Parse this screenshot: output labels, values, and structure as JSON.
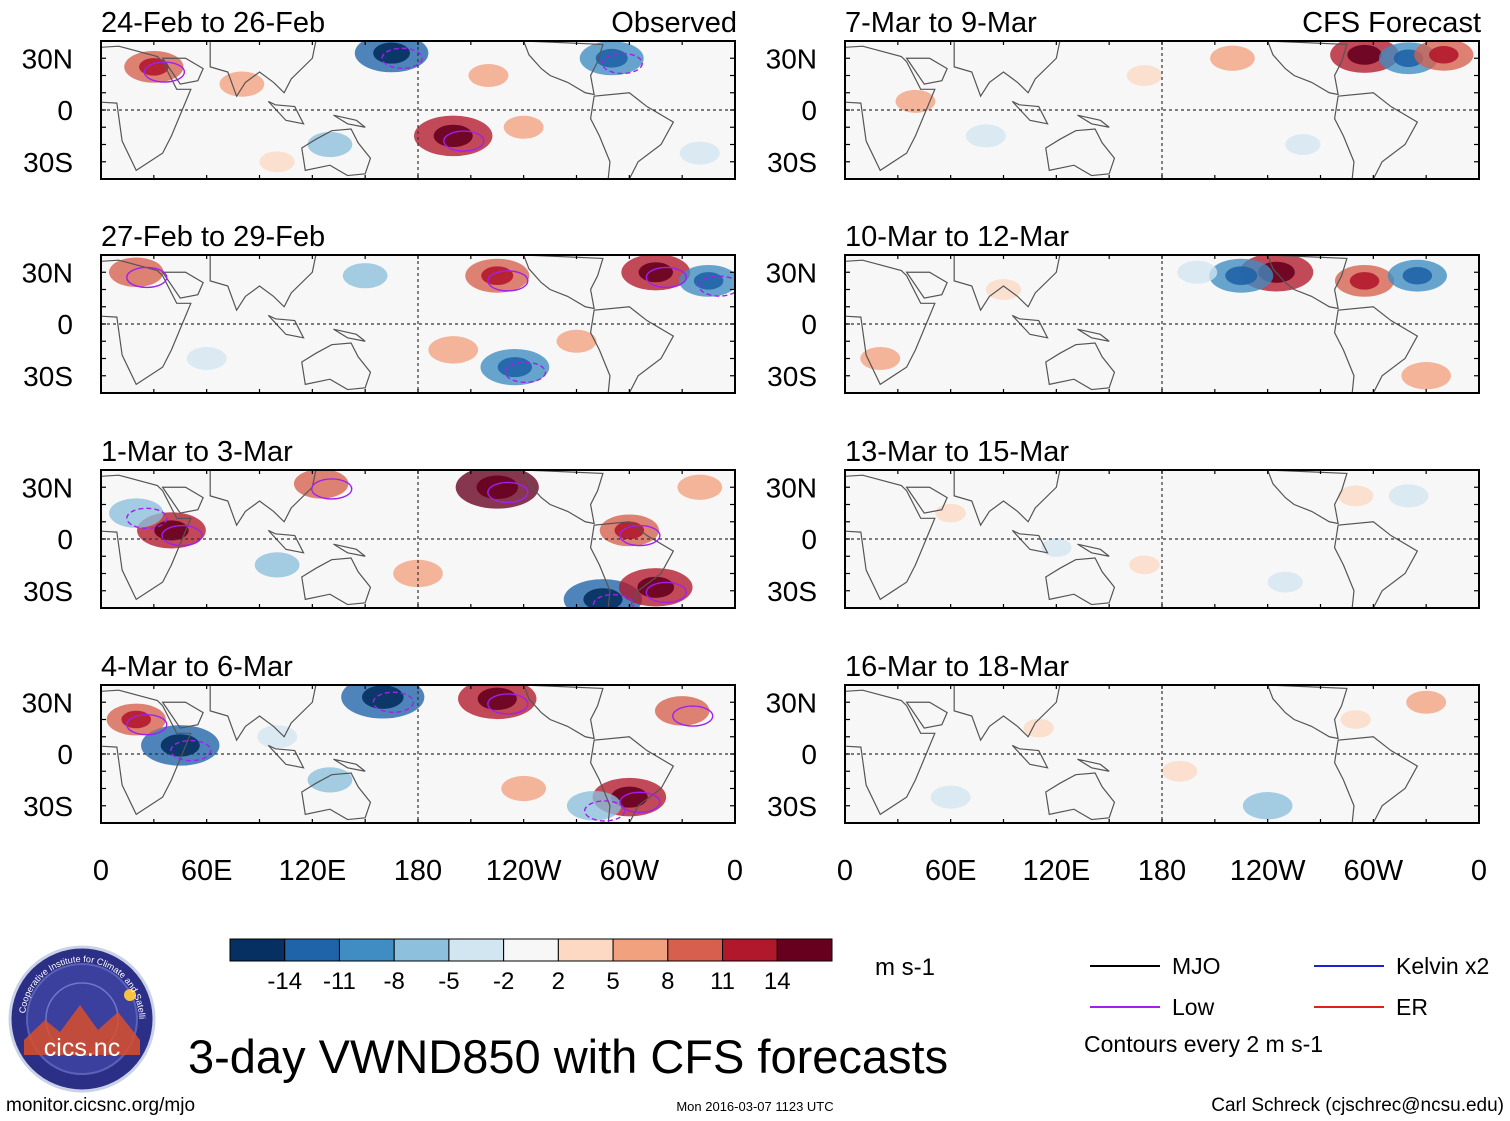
{
  "chart_data": {
    "type": "heatmap",
    "variable": "VWND850",
    "title": "3-day VWND850 with CFS forecasts",
    "units": "m s-1",
    "x_ticks": [
      "0",
      "60E",
      "120E",
      "180",
      "120W",
      "60W",
      "0"
    ],
    "y_ticks": [
      "30N",
      "0",
      "30S"
    ],
    "x_range_deg_east": [
      0,
      360
    ],
    "y_range_deg": [
      -40,
      40
    ],
    "colorbar": {
      "levels": [
        -14,
        -11,
        -8,
        -5,
        -2,
        2,
        5,
        8,
        11,
        14
      ],
      "labels": [
        "-14",
        "-11",
        "-8",
        "-5",
        "-2",
        "2",
        "5",
        "8",
        "11",
        "14"
      ],
      "colors": [
        "#053061",
        "#1f64a8",
        "#3f8dc2",
        "#8cc0dd",
        "#d2e6f1",
        "#f7f7f7",
        "#fdd9c4",
        "#f2a17f",
        "#d6604d",
        "#b2182b",
        "#67001f"
      ]
    },
    "columns": [
      {
        "label": "Observed",
        "panels": [
          {
            "period": "24-Feb to 26-Feb",
            "blobs": [
              {
                "lon": 165,
                "lat": 33,
                "v": -12
              },
              {
                "lon": 200,
                "lat": -15,
                "v": 13
              },
              {
                "lon": 30,
                "lat": 25,
                "v": 9
              },
              {
                "lon": 290,
                "lat": 30,
                "v": -10
              },
              {
                "lon": 80,
                "lat": 15,
                "v": 6
              },
              {
                "lon": 130,
                "lat": -20,
                "v": -6
              },
              {
                "lon": 240,
                "lat": -10,
                "v": 5
              },
              {
                "lon": 340,
                "lat": -25,
                "v": -5
              },
              {
                "lon": 100,
                "lat": -30,
                "v": 4
              },
              {
                "lon": 220,
                "lat": 20,
                "v": 5
              }
            ]
          },
          {
            "period": "27-Feb to 29-Feb",
            "blobs": [
              {
                "lon": 225,
                "lat": 28,
                "v": 10
              },
              {
                "lon": 315,
                "lat": 30,
                "v": 11
              },
              {
                "lon": 20,
                "lat": 30,
                "v": 8
              },
              {
                "lon": 235,
                "lat": -25,
                "v": -11
              },
              {
                "lon": 345,
                "lat": 25,
                "v": -9
              },
              {
                "lon": 150,
                "lat": 28,
                "v": -6
              },
              {
                "lon": 200,
                "lat": -15,
                "v": 7
              },
              {
                "lon": 60,
                "lat": -20,
                "v": -5
              },
              {
                "lon": 270,
                "lat": -10,
                "v": 5
              }
            ]
          },
          {
            "period": "1-Mar to 3-Mar",
            "blobs": [
              {
                "lon": 225,
                "lat": 30,
                "v": 14
              },
              {
                "lon": 40,
                "lat": 5,
                "v": 11
              },
              {
                "lon": 300,
                "lat": 5,
                "v": 9
              },
              {
                "lon": 285,
                "lat": -35,
                "v": -13
              },
              {
                "lon": 315,
                "lat": -28,
                "v": 12
              },
              {
                "lon": 20,
                "lat": 15,
                "v": -8
              },
              {
                "lon": 180,
                "lat": -20,
                "v": 7
              },
              {
                "lon": 100,
                "lat": -15,
                "v": -6
              },
              {
                "lon": 125,
                "lat": 32,
                "v": 8
              },
              {
                "lon": 340,
                "lat": 30,
                "v": 6
              }
            ]
          },
          {
            "period": "4-Mar to 6-Mar",
            "blobs": [
              {
                "lon": 160,
                "lat": 33,
                "v": -14
              },
              {
                "lon": 45,
                "lat": 5,
                "v": -13
              },
              {
                "lon": 225,
                "lat": 32,
                "v": 13
              },
              {
                "lon": 300,
                "lat": -25,
                "v": 12
              },
              {
                "lon": 20,
                "lat": 20,
                "v": 9
              },
              {
                "lon": 330,
                "lat": 25,
                "v": 8
              },
              {
                "lon": 240,
                "lat": -20,
                "v": 6
              },
              {
                "lon": 130,
                "lat": -15,
                "v": -6
              },
              {
                "lon": 280,
                "lat": -30,
                "v": -8
              },
              {
                "lon": 100,
                "lat": 10,
                "v": -5
              }
            ]
          }
        ]
      },
      {
        "label": "CFS Forecast",
        "panels": [
          {
            "period": "7-Mar to 9-Mar",
            "blobs": [
              {
                "lon": 295,
                "lat": 32,
                "v": 11
              },
              {
                "lon": 320,
                "lat": 30,
                "v": -9
              },
              {
                "lon": 340,
                "lat": 32,
                "v": 9
              },
              {
                "lon": 220,
                "lat": 30,
                "v": 6
              },
              {
                "lon": 40,
                "lat": 5,
                "v": 5
              },
              {
                "lon": 80,
                "lat": -15,
                "v": -5
              },
              {
                "lon": 260,
                "lat": -20,
                "v": -4
              },
              {
                "lon": 170,
                "lat": 20,
                "v": 4
              }
            ]
          },
          {
            "period": "10-Mar to 12-Mar",
            "blobs": [
              {
                "lon": 245,
                "lat": 30,
                "v": 12
              },
              {
                "lon": 225,
                "lat": 28,
                "v": -10
              },
              {
                "lon": 295,
                "lat": 25,
                "v": 9
              },
              {
                "lon": 325,
                "lat": 28,
                "v": -9
              },
              {
                "lon": 200,
                "lat": 30,
                "v": -5
              },
              {
                "lon": 330,
                "lat": -30,
                "v": 7
              },
              {
                "lon": 20,
                "lat": -20,
                "v": 5
              },
              {
                "lon": 90,
                "lat": 20,
                "v": 4
              }
            ]
          },
          {
            "period": "13-Mar to 15-Mar",
            "blobs": [
              {
                "lon": 320,
                "lat": 25,
                "v": -5
              },
              {
                "lon": 290,
                "lat": 25,
                "v": 4
              },
              {
                "lon": 170,
                "lat": -15,
                "v": 3
              },
              {
                "lon": 60,
                "lat": 15,
                "v": 3
              },
              {
                "lon": 250,
                "lat": -25,
                "v": -4
              },
              {
                "lon": 120,
                "lat": -5,
                "v": -3
              }
            ]
          },
          {
            "period": "16-Mar to 18-Mar",
            "blobs": [
              {
                "lon": 240,
                "lat": -30,
                "v": -7
              },
              {
                "lon": 60,
                "lat": -25,
                "v": -5
              },
              {
                "lon": 330,
                "lat": 30,
                "v": 5
              },
              {
                "lon": 190,
                "lat": -10,
                "v": 4
              },
              {
                "lon": 110,
                "lat": 15,
                "v": 3
              },
              {
                "lon": 290,
                "lat": 20,
                "v": 3
              }
            ]
          }
        ]
      }
    ]
  },
  "legend": {
    "entries": [
      {
        "name": "MJO",
        "color": "#000000"
      },
      {
        "name": "Kelvin x2",
        "color": "#1f1fd6"
      },
      {
        "name": "Low",
        "color": "#a020f0"
      },
      {
        "name": "ER",
        "color": "#e0201b"
      }
    ],
    "contour_note": "Contours every 2 m s-1"
  },
  "logo": {
    "name": "cicsnc-logo",
    "text": "cics.nc",
    "ring_text": "Cooperative Institute for Climate and Satellites"
  },
  "footer": {
    "url": "monitor.cicsnc.org/mjo",
    "timestamp": "Mon 2016-03-07 1123 UTC",
    "author": "Carl Schreck (cjschrec@ncsu.edu)"
  }
}
